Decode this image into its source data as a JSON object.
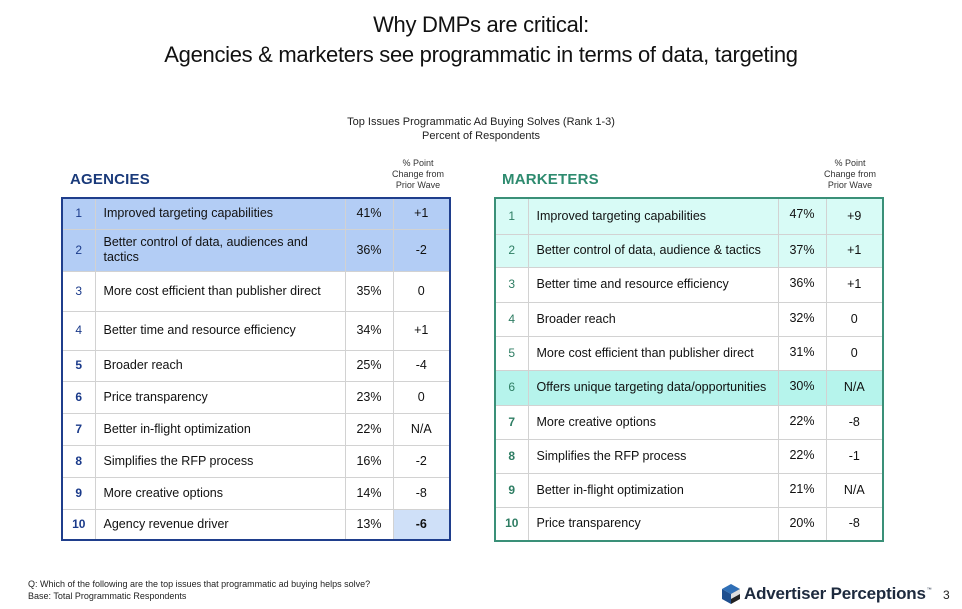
{
  "title": {
    "line1": "Why DMPs are critical:",
    "line2": "Agencies & marketers see programmatic in terms of data, targeting"
  },
  "subtitle": {
    "line1": "Top Issues Programmatic Ad Buying Solves (Rank 1-3)",
    "line2": "Percent of Respondents"
  },
  "change_header": {
    "line1": "% Point",
    "line2": "Change from",
    "line3": "Prior Wave"
  },
  "agencies": {
    "title": "AGENCIES",
    "accent_color": "#1f3e8c",
    "rows": [
      {
        "rank": "1",
        "label": "Improved targeting capabilities",
        "pct": "41%",
        "change": "+1"
      },
      {
        "rank": "2",
        "label": "Better control of data, audiences and tactics",
        "pct": "36%",
        "change": "-2"
      },
      {
        "rank": "3",
        "label": "More cost efficient than publisher direct",
        "pct": "35%",
        "change": "0"
      },
      {
        "rank": "4",
        "label": "Better time and resource efficiency",
        "pct": "34%",
        "change": "+1"
      },
      {
        "rank": "5",
        "label": "Broader reach",
        "pct": "25%",
        "change": "-4"
      },
      {
        "rank": "6",
        "label": "Price transparency",
        "pct": "23%",
        "change": "0"
      },
      {
        "rank": "7",
        "label": "Better in-flight optimization",
        "pct": "22%",
        "change": "N/A"
      },
      {
        "rank": "8",
        "label": "Simplifies the RFP process",
        "pct": "16%",
        "change": "-2"
      },
      {
        "rank": "9",
        "label": "More creative options",
        "pct": "14%",
        "change": "-8"
      },
      {
        "rank": "10",
        "label": "Agency revenue driver",
        "pct": "13%",
        "change": "-6"
      }
    ]
  },
  "marketers": {
    "title": "MARKETERS",
    "accent_color": "#3a9078",
    "rows": [
      {
        "rank": "1",
        "label": "Improved targeting capabilities",
        "pct": "47%",
        "change": "+9"
      },
      {
        "rank": "2",
        "label": "Better control of data, audience & tactics",
        "pct": "37%",
        "change": "+1"
      },
      {
        "rank": "3",
        "label": "Better time and resource efficiency",
        "pct": "36%",
        "change": "+1"
      },
      {
        "rank": "4",
        "label": "Broader reach",
        "pct": "32%",
        "change": "0"
      },
      {
        "rank": "5",
        "label": "More cost efficient than publisher direct",
        "pct": "31%",
        "change": "0"
      },
      {
        "rank": "6",
        "label": "Offers unique targeting data/opportunities",
        "pct": "30%",
        "change": "N/A"
      },
      {
        "rank": "7",
        "label": "More creative options",
        "pct": "22%",
        "change": "-8"
      },
      {
        "rank": "8",
        "label": "Simplifies the RFP process",
        "pct": "22%",
        "change": "-1"
      },
      {
        "rank": "9",
        "label": "Better in-flight optimization",
        "pct": "21%",
        "change": "N/A"
      },
      {
        "rank": "10",
        "label": "Price transparency",
        "pct": "20%",
        "change": "-8"
      }
    ]
  },
  "footer": {
    "question": "Q: Which of the following are the top issues that programmatic ad buying helps solve?",
    "base": "Base: Total Programmatic Respondents",
    "logo_text": "Advertiser Perceptions",
    "logo_tm": "™",
    "page_number": "3"
  }
}
